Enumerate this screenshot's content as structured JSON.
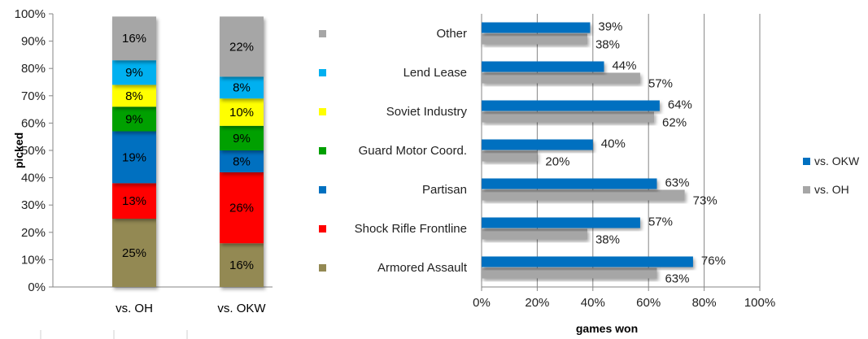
{
  "chart_data": [
    {
      "type": "bar",
      "stacked": true,
      "orientation": "vertical",
      "ylabel": "picked",
      "ylim": [
        0,
        100
      ],
      "y_ticks": [
        "0%",
        "10%",
        "20%",
        "30%",
        "40%",
        "50%",
        "60%",
        "70%",
        "80%",
        "90%",
        "100%"
      ],
      "categories": [
        "vs. OH",
        "vs. OKW"
      ],
      "grid": false,
      "series": [
        {
          "key": "armored",
          "values": [
            25,
            16
          ],
          "labels": [
            "25%",
            "16%"
          ],
          "color": "#938953"
        },
        {
          "key": "shock",
          "values": [
            13,
            26
          ],
          "labels": [
            "13%",
            "26%"
          ],
          "color": "#ff0000"
        },
        {
          "key": "partisan",
          "values": [
            19,
            8
          ],
          "labels": [
            "19%",
            "8%"
          ],
          "color": "#0070c0"
        },
        {
          "key": "guard",
          "values": [
            9,
            9
          ],
          "labels": [
            "9%",
            "9%"
          ],
          "color": "#00a000"
        },
        {
          "key": "soviet",
          "values": [
            8,
            10
          ],
          "labels": [
            "8%",
            "10%"
          ],
          "color": "#ffff00"
        },
        {
          "key": "lend",
          "values": [
            9,
            8
          ],
          "labels": [
            "9%",
            "8%"
          ],
          "color": "#00b0f0"
        },
        {
          "key": "other",
          "values": [
            16,
            22
          ],
          "labels": [
            "16%",
            "22%"
          ],
          "color": "#a6a6a6"
        }
      ]
    },
    {
      "type": "bar",
      "orientation": "horizontal",
      "xlabel": "games won",
      "xlim": [
        0,
        100
      ],
      "x_ticks": [
        "0%",
        "20%",
        "40%",
        "60%",
        "80%",
        "100%"
      ],
      "grid": true,
      "legend_position": "right",
      "categories": [
        "Other",
        "Lend Lease",
        "Soviet Industry",
        "Guard Motor Coord.",
        "Partisan",
        "Shock Rifle Frontline",
        "Armored Assault"
      ],
      "category_colors": [
        "#a6a6a6",
        "#00b0f0",
        "#ffff00",
        "#00a000",
        "#0070c0",
        "#ff0000",
        "#938953"
      ],
      "series": [
        {
          "name": "vs. OKW",
          "color": "#0070c0",
          "values": [
            39,
            44,
            64,
            40,
            63,
            57,
            76
          ],
          "labels": [
            "39%",
            "44%",
            "64%",
            "40%",
            "63%",
            "57%",
            "76%"
          ]
        },
        {
          "name": "vs. OH",
          "color": "#a6a6a6",
          "values": [
            38,
            57,
            62,
            20,
            73,
            38,
            63
          ],
          "labels": [
            "38%",
            "57%",
            "62%",
            "20%",
            "73%",
            "38%",
            "63%"
          ]
        }
      ]
    }
  ]
}
